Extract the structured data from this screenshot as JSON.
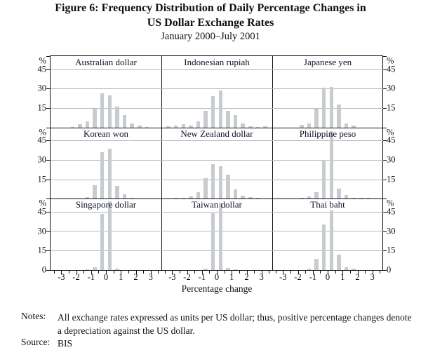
{
  "figure": {
    "title_line1": "Figure 6: Frequency Distribution of Daily Percentage Changes in",
    "title_line2": "US Dollar Exchange Rates",
    "subtitle": "January 2000–July 2001"
  },
  "notes": {
    "notes_label": "Notes:",
    "notes_text": "All exchange rates expressed as units per US dollar; thus, positive percentage changes denote a depreciation against the US dollar.",
    "source_label": "Source:",
    "source_text": "BIS"
  },
  "colors": {
    "bar": "#c8cccf",
    "gridline": "#b6baba",
    "frame": "#111111"
  },
  "chart_data": {
    "type": "bar",
    "variant": "histogram-small-multiples-3x3",
    "title": "Figure 6: Frequency Distribution of Daily Percentage Changes in US Dollar Exchange Rates",
    "subtitle": "January 2000–July 2001",
    "xlabel": "Percentage change",
    "ylabel": "%",
    "xlim": [
      -3.72,
      3.72
    ],
    "ylim": [
      0,
      55
    ],
    "yticks": [
      0,
      15,
      30,
      45
    ],
    "xticks": [
      -3,
      -2,
      -1,
      0,
      1,
      2,
      3
    ],
    "minor_xtick_step": 0.5,
    "bin_width": 0.5,
    "grid": "horizontal",
    "legend": "none",
    "panels": [
      {
        "title": "Australian dollar",
        "x": [
          -2.25,
          -1.75,
          -1.25,
          -0.75,
          -0.25,
          0.25,
          0.75,
          1.25,
          1.75,
          2.25,
          2.75
        ],
        "values": [
          0.5,
          2.5,
          5,
          14.5,
          26.5,
          24.5,
          16,
          9.5,
          3,
          1.5,
          0.5
        ]
      },
      {
        "title": "Indonesian rupiah",
        "x": [
          -3.25,
          -2.75,
          -2.25,
          -1.75,
          -1.25,
          -0.75,
          -0.25,
          0.25,
          0.75,
          1.25,
          1.75,
          2.25,
          2.75,
          3.25
        ],
        "values": [
          0.7,
          1.5,
          2.5,
          1.5,
          4.5,
          13,
          24,
          28.5,
          13,
          9.5,
          3,
          1,
          0.5,
          1
        ]
      },
      {
        "title": "Japanese yen",
        "x": [
          -1.75,
          -1.25,
          -0.75,
          -0.25,
          0.25,
          0.75,
          1.25,
          1.75
        ],
        "values": [
          2,
          3,
          14.5,
          30.5,
          31,
          17.5,
          3,
          1.5
        ]
      },
      {
        "title": "Korean won",
        "x": [
          -1.25,
          -0.75,
          -0.25,
          0.25,
          0.75,
          1.25,
          1.75
        ],
        "values": [
          1.5,
          10.5,
          36,
          38.5,
          10,
          3.5,
          1
        ]
      },
      {
        "title": "New Zealand dollar",
        "x": [
          -2.75,
          -2.25,
          -1.75,
          -1.25,
          -0.75,
          -0.25,
          0.25,
          0.75,
          1.25,
          1.75,
          2.25,
          2.75
        ],
        "values": [
          1,
          1,
          2,
          5,
          16,
          26.5,
          25,
          18.5,
          7,
          2.5,
          1.5,
          1
        ]
      },
      {
        "title": "Philippine peso",
        "x": [
          -1.75,
          -1.25,
          -0.75,
          -0.25,
          0.25,
          0.75,
          1.25,
          1.75,
          2.25,
          2.75
        ],
        "values": [
          1,
          2,
          5,
          30,
          52,
          8,
          3,
          1,
          0.75,
          0.5
        ]
      },
      {
        "title": "Singapore dollar",
        "x": [
          -1.25,
          -0.75,
          -0.25,
          0.25,
          0.75
        ],
        "values": [
          0.5,
          2,
          43,
          53,
          1
        ]
      },
      {
        "title": "Taiwan dollar",
        "x": [
          -0.75,
          -0.25,
          0.25,
          0.75,
          1.25
        ],
        "values": [
          1,
          44,
          52,
          1.5,
          0.75
        ]
      },
      {
        "title": "Thai baht",
        "x": [
          -1.25,
          -0.75,
          -0.25,
          0.25,
          0.75,
          1.25,
          1.75
        ],
        "values": [
          1,
          8.5,
          35,
          46,
          12,
          2,
          1
        ]
      }
    ]
  }
}
